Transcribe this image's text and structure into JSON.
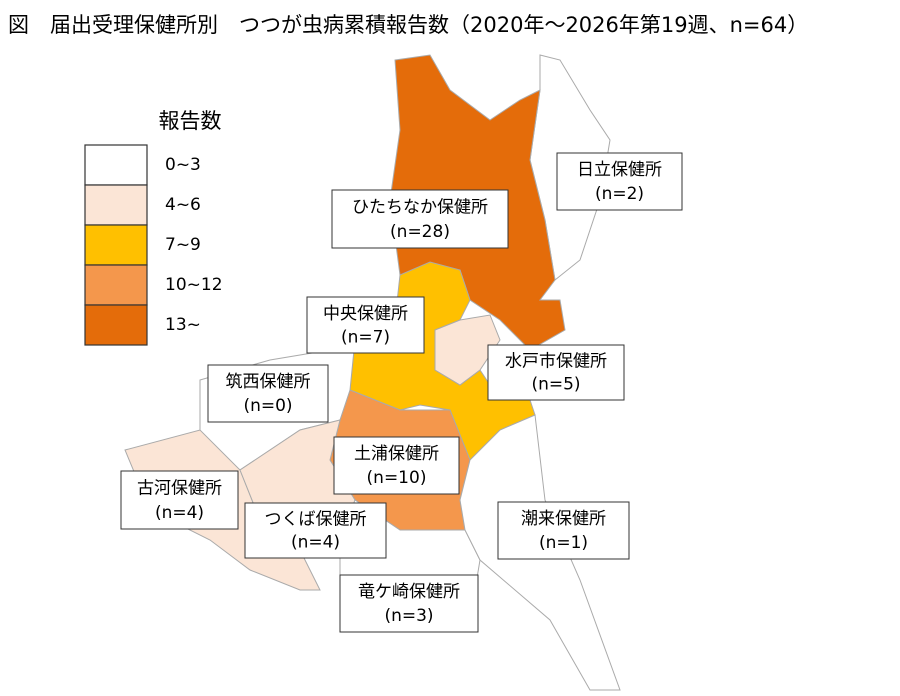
{
  "title": "図　届出受理保健所別　つつが虫病累積報告数（2020年～2026年第19週、n=64）",
  "legend": {
    "title": "報告数",
    "items": [
      {
        "label": "0~3",
        "color": "#ffffff"
      },
      {
        "label": "4~6",
        "color": "#fbe5d6"
      },
      {
        "label": "7~9",
        "color": "#ffc000"
      },
      {
        "label": "10~12",
        "color": "#f4974c"
      },
      {
        "label": "13~",
        "color": "#e46c0a"
      }
    ]
  },
  "regions": [
    {
      "name": "日立保健所",
      "count": "(n=2)"
    },
    {
      "name": "ひたちなか保健所",
      "count": "(n=28)"
    },
    {
      "name": "中央保健所",
      "count": "(n=7)"
    },
    {
      "name": "水戸市保健所",
      "count": "(n=5)"
    },
    {
      "name": "筑西保健所",
      "count": "(n=0)"
    },
    {
      "name": "土浦保健所",
      "count": "(n=10)"
    },
    {
      "name": "古河保健所",
      "count": "(n=4)"
    },
    {
      "name": "つくば保健所",
      "count": "(n=4)"
    },
    {
      "name": "潮来保健所",
      "count": "(n=1)"
    },
    {
      "name": "竜ケ崎保健所",
      "count": "(n=3)"
    }
  ]
}
